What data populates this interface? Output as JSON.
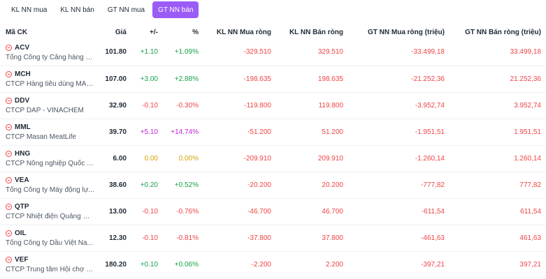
{
  "tabs": [
    {
      "label": "KL NN mua",
      "active": false
    },
    {
      "label": "KL NN bán",
      "active": false
    },
    {
      "label": "GT NN mua",
      "active": false
    },
    {
      "label": "GT NN bán",
      "active": true
    }
  ],
  "table": {
    "headers": [
      "Mã CK",
      "Giá",
      "+/-",
      "%",
      "KL NN Mua ròng",
      "KL NN Bán ròng",
      "GT NN Mua ròng (triệu)",
      "GT NN Bán ròng (triệu)"
    ],
    "rows": [
      {
        "code": "ACV",
        "name": "Tổng Công ty Cảng hàng k...",
        "price": "101.80",
        "change": "+1.10",
        "pct": "+1.09%",
        "trend": "up",
        "kl_buy": "-329.510",
        "kl_sell": "329.510",
        "gt_buy": "-33.499,18",
        "gt_sell": "33.499,18"
      },
      {
        "code": "MCH",
        "name": "CTCP Hàng tiêu dùng MAS...",
        "price": "107.00",
        "change": "+3.00",
        "pct": "+2.88%",
        "trend": "up",
        "kl_buy": "-198.635",
        "kl_sell": "198.635",
        "gt_buy": "-21.252,36",
        "gt_sell": "21.252,36"
      },
      {
        "code": "DDV",
        "name": "CTCP DAP - VINACHEM",
        "price": "32.90",
        "change": "-0.10",
        "pct": "-0.30%",
        "trend": "down",
        "kl_buy": "-119.800",
        "kl_sell": "119.800",
        "gt_buy": "-3.952,74",
        "gt_sell": "3.952,74"
      },
      {
        "code": "MML",
        "name": "CTCP Masan MeatLife",
        "price": "39.70",
        "change": "+5.10",
        "pct": "+14.74%",
        "trend": "ceil",
        "kl_buy": "-51.200",
        "kl_sell": "51.200",
        "gt_buy": "-1.951,51",
        "gt_sell": "1.951,51"
      },
      {
        "code": "HNG",
        "name": "CTCP Nông nghiệp Quốc t...",
        "price": "6.00",
        "change": "0.00",
        "pct": "0.00%",
        "trend": "ref",
        "kl_buy": "-209.910",
        "kl_sell": "209.910",
        "gt_buy": "-1.260,14",
        "gt_sell": "1.260,14"
      },
      {
        "code": "VEA",
        "name": "Tổng Công ty Máy động lự...",
        "price": "38.60",
        "change": "+0.20",
        "pct": "+0.52%",
        "trend": "up",
        "kl_buy": "-20.200",
        "kl_sell": "20.200",
        "gt_buy": "-777,82",
        "gt_sell": "777,82"
      },
      {
        "code": "QTP",
        "name": "CTCP Nhiệt điện Quảng Ninh",
        "price": "13.00",
        "change": "-0.10",
        "pct": "-0.76%",
        "trend": "down",
        "kl_buy": "-46.700",
        "kl_sell": "46.700",
        "gt_buy": "-611,54",
        "gt_sell": "611,54"
      },
      {
        "code": "OIL",
        "name": "Tổng Công ty Dầu Việt Na...",
        "price": "12.30",
        "change": "-0.10",
        "pct": "-0.81%",
        "trend": "down",
        "kl_buy": "-37.800",
        "kl_sell": "37.800",
        "gt_buy": "-461,63",
        "gt_sell": "461,63"
      },
      {
        "code": "VEF",
        "name": "CTCP Trung tâm Hội chợ T...",
        "price": "180.20",
        "change": "+0.10",
        "pct": "+0.06%",
        "trend": "up",
        "kl_buy": "-2.200",
        "kl_sell": "2.200",
        "gt_buy": "-397,21",
        "gt_sell": "397,21"
      }
    ]
  },
  "icons": {
    "row_icon": "minus-circle-icon"
  },
  "colors": {
    "accent": "#9b5cf6",
    "up": "#16a34a",
    "down": "#ef4444",
    "reference": "#d4a106",
    "ceiling": "#c026d3"
  }
}
